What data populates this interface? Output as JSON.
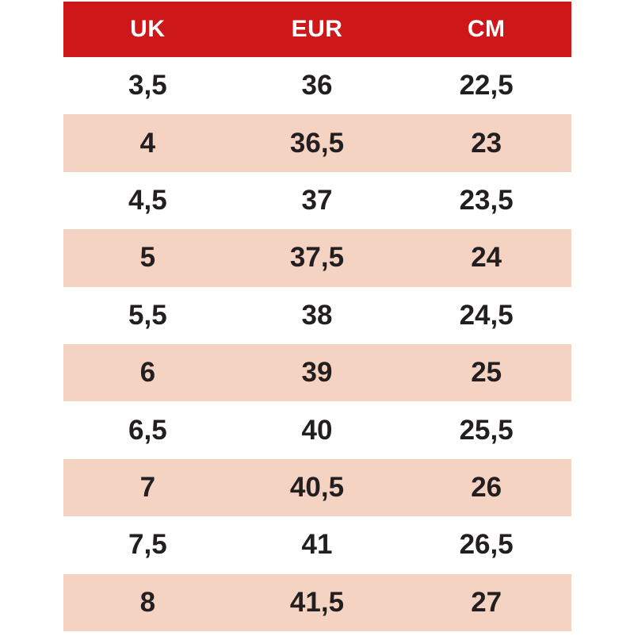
{
  "chart_data": {
    "type": "table",
    "columns": [
      "UK",
      "EUR",
      "CM"
    ],
    "rows": [
      [
        "3,5",
        "36",
        "22,5"
      ],
      [
        "4",
        "36,5",
        "23"
      ],
      [
        "4,5",
        "37",
        "23,5"
      ],
      [
        "5",
        "37,5",
        "24"
      ],
      [
        "5,5",
        "38",
        "24,5"
      ],
      [
        "6",
        "39",
        "25"
      ],
      [
        "6,5",
        "40",
        "25,5"
      ],
      [
        "7",
        "40,5",
        "26"
      ],
      [
        "7,5",
        "41",
        "26,5"
      ],
      [
        "8",
        "41,5",
        "27"
      ]
    ]
  },
  "colors": {
    "page_bg": "#ffffff",
    "header_bg": "#cd1719",
    "header_text": "#ffffff",
    "row_bg": "#ffffff",
    "row_alt_bg": "#f5d3c3",
    "cell_text": "#231f20"
  }
}
